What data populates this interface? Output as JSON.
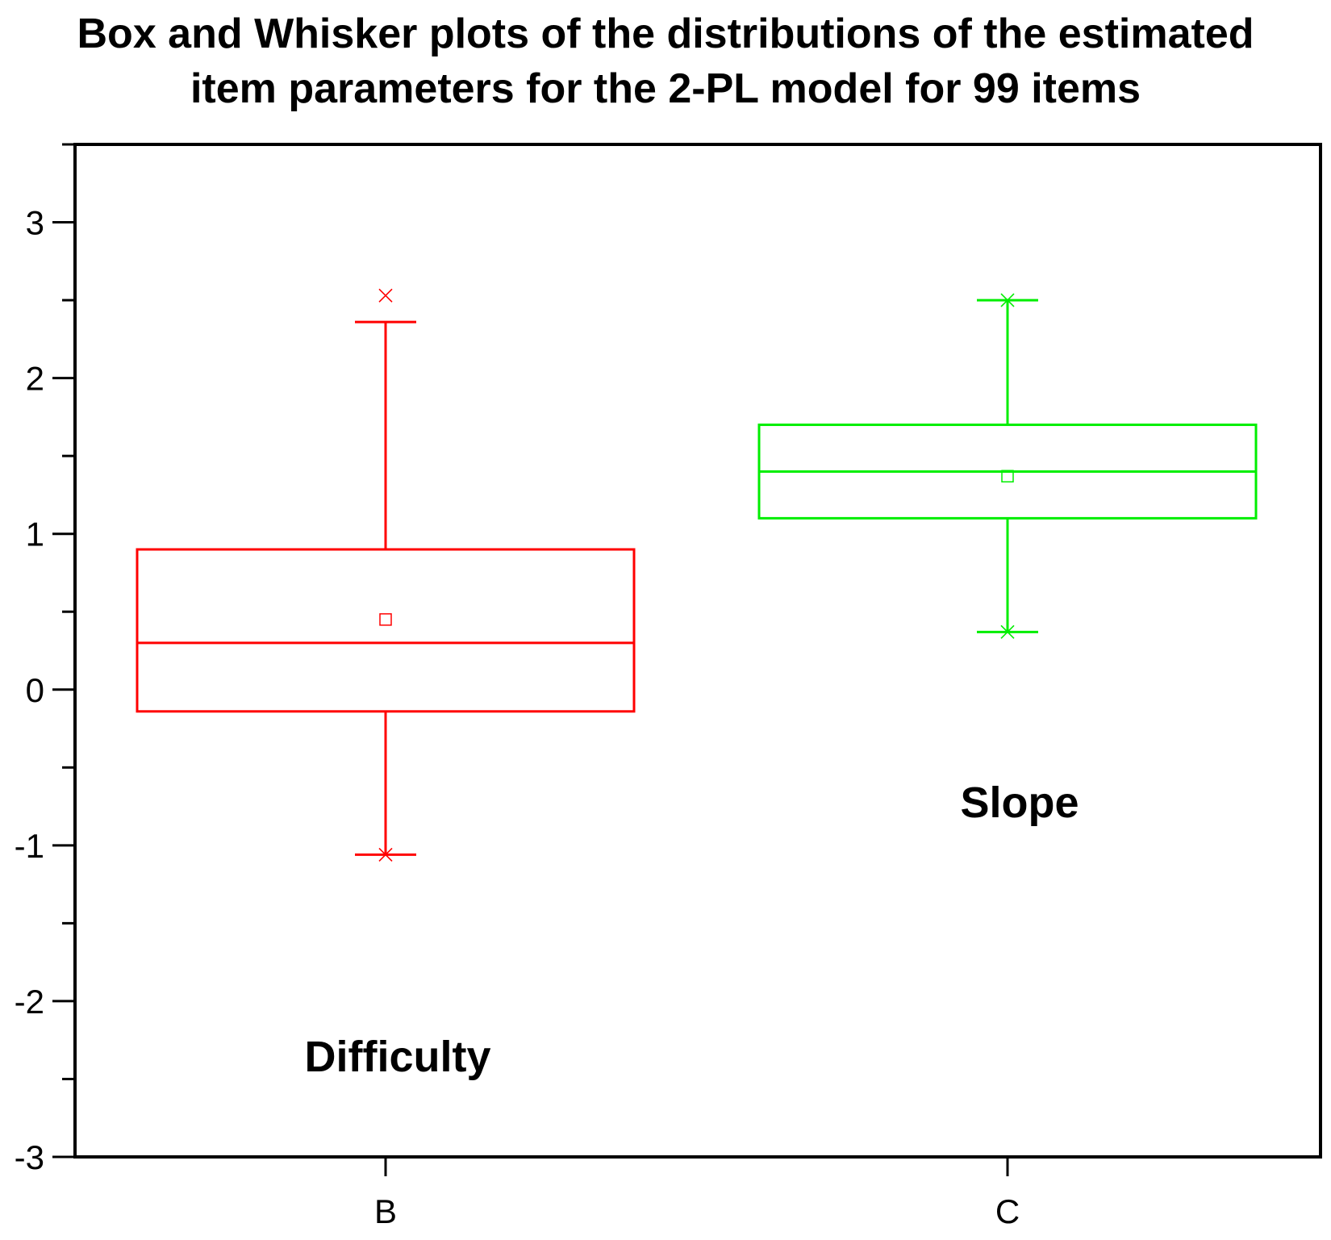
{
  "chart_data": {
    "type": "box",
    "title": "Box and Whisker plots of the distributions of the estimated item parameters for the 2-PL model for 99 items",
    "title_lines": [
      "Box and Whisker plots of the distributions of the estimated",
      "item parameters for the 2-PL model for 99 items"
    ],
    "xlabel": "",
    "ylabel": "",
    "ylim": [
      -3,
      3.5
    ],
    "yticks": [
      -3,
      -2,
      -1,
      0,
      1,
      2,
      3
    ],
    "ytick_labels": [
      "-3",
      "-2",
      "-1",
      "0",
      "1",
      "2",
      "3"
    ],
    "grid": false,
    "categories": [
      "B",
      "C"
    ],
    "series": [
      {
        "name": "Difficulty",
        "category": "B",
        "color": "#ff0000",
        "whisker_low": -1.06,
        "q1": -0.14,
        "median": 0.3,
        "q3": 0.9,
        "whisker_high": 2.36,
        "mean": 0.45,
        "min": -1.06,
        "max": 2.53
      },
      {
        "name": "Slope",
        "category": "C",
        "color": "#00ee00",
        "whisker_low": 0.37,
        "q1": 1.1,
        "median": 1.4,
        "q3": 1.7,
        "whisker_high": 2.5,
        "mean": 1.37,
        "min": 0.37,
        "max": 2.5
      }
    ],
    "annotations": [
      {
        "text": "Difficulty",
        "category": "B",
        "y": -2.45
      },
      {
        "text": "Slope",
        "category": "C",
        "y": -0.82
      }
    ]
  }
}
